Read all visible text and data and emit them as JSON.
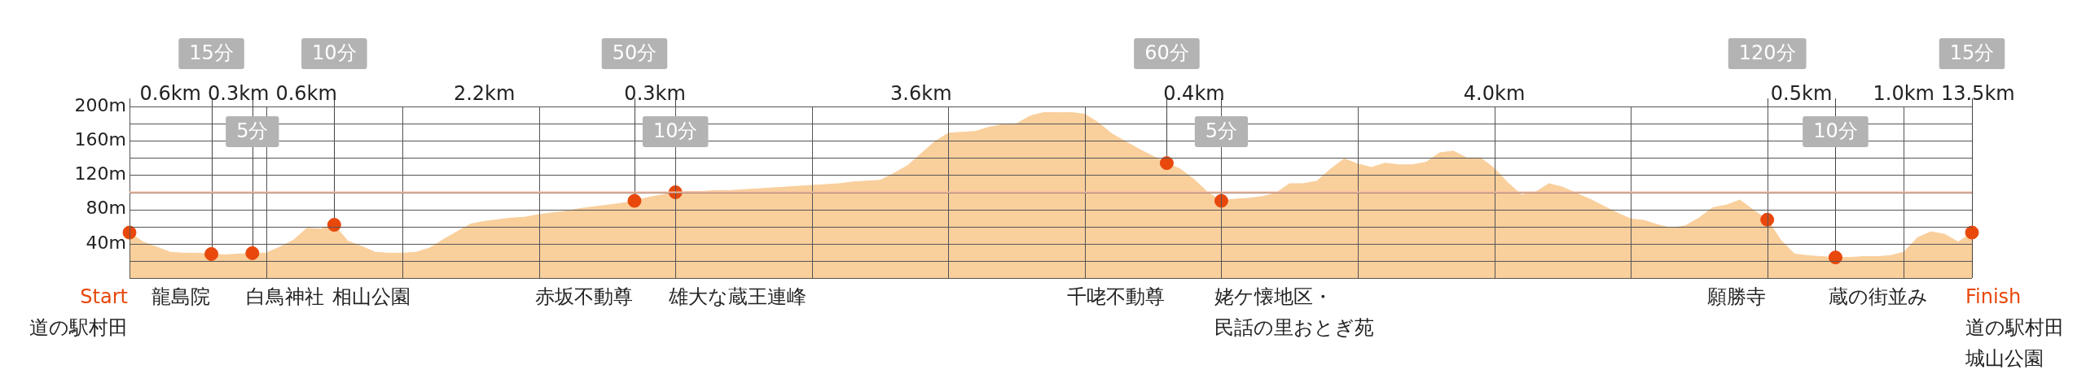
{
  "chart_data": {
    "type": "area",
    "ylim": [
      0,
      200
    ],
    "categories": [
      null,
      null,
      null,
      null,
      null,
      null,
      null,
      null,
      null,
      null,
      null,
      null,
      null,
      null,
      null,
      null,
      null,
      null,
      null,
      null,
      null,
      null,
      null,
      null,
      null,
      null,
      null,
      null,
      null,
      null,
      null,
      null,
      null,
      null,
      null,
      null,
      null,
      null,
      null,
      null,
      null,
      null,
      null,
      null,
      null,
      null,
      null,
      null,
      null,
      null,
      null,
      null,
      null,
      null,
      null,
      null,
      null,
      null,
      null,
      null,
      null,
      null,
      null,
      null,
      null,
      null,
      null,
      null,
      null,
      null,
      null,
      null,
      null,
      null,
      null,
      null,
      null,
      null,
      null,
      null,
      null,
      null,
      null,
      null,
      null,
      null,
      null,
      null,
      null,
      null,
      null,
      null,
      null,
      null,
      null,
      null,
      null,
      null,
      null,
      null,
      null,
      null,
      null,
      null,
      null,
      null,
      null,
      null,
      null,
      null,
      null,
      null,
      null,
      null,
      null,
      null,
      null,
      null,
      null,
      null,
      null,
      null,
      null,
      null,
      null,
      null,
      null,
      null,
      null,
      null,
      null,
      null,
      null,
      null,
      null,
      null
    ],
    "yticks": [
      {
        "value": 0,
        "label": null
      },
      {
        "value": 20,
        "label": null
      },
      {
        "value": 40,
        "label": "40m"
      },
      {
        "value": 60,
        "label": null
      },
      {
        "value": 80,
        "label": "80m"
      },
      {
        "value": 100,
        "label": null
      },
      {
        "value": 120,
        "label": "120m"
      },
      {
        "value": 140,
        "label": null
      },
      {
        "value": 160,
        "label": "160m"
      },
      {
        "value": 180,
        "label": null
      },
      {
        "value": 200,
        "label": "200m"
      }
    ],
    "grid": true,
    "tick_labels": "y",
    "legend": false,
    "series": [
      {
        "color": "#f9cf9c",
        "marker": "none",
        "values": [
          53,
          42,
          36,
          30,
          29,
          29,
          28,
          27,
          28,
          29,
          29,
          36,
          44,
          58,
          57,
          62,
          43,
          37,
          30,
          29,
          29,
          30,
          35,
          45,
          54,
          63,
          66,
          68,
          70,
          71,
          74,
          76,
          78,
          81,
          83,
          85,
          87,
          90,
          94,
          97,
          100,
          101,
          101,
          102,
          102,
          103,
          104,
          105,
          106,
          107,
          108,
          109,
          110,
          112,
          113,
          114,
          122,
          131,
          145,
          159,
          169,
          170,
          171,
          176,
          179,
          180,
          189,
          193,
          193,
          193,
          191,
          181,
          168,
          159,
          150,
          142,
          134,
          127,
          115,
          100,
          90,
          92,
          93,
          95,
          99,
          110,
          110,
          113,
          127,
          139,
          133,
          129,
          134,
          132,
          132,
          135,
          146,
          148,
          140,
          140,
          128,
          111,
          97,
          100,
          110,
          106,
          99,
          92,
          84,
          76,
          69,
          67,
          62,
          58,
          61,
          70,
          82,
          85,
          91,
          79,
          68,
          44,
          28,
          26,
          25,
          24,
          24,
          25,
          25,
          26,
          30,
          47,
          54,
          51,
          42,
          53
        ]
      },
      {
        "type": "scatter",
        "color": "#e8480c",
        "marker": "circle",
        "values": [
          53,
          null,
          null,
          null,
          null,
          null,
          28,
          null,
          null,
          29,
          null,
          null,
          null,
          null,
          null,
          62,
          null,
          null,
          null,
          null,
          null,
          null,
          null,
          null,
          null,
          null,
          null,
          null,
          null,
          null,
          null,
          null,
          null,
          null,
          null,
          null,
          null,
          90,
          null,
          null,
          100,
          null,
          null,
          null,
          null,
          null,
          null,
          null,
          null,
          null,
          null,
          null,
          null,
          null,
          null,
          null,
          null,
          null,
          null,
          null,
          null,
          null,
          null,
          null,
          null,
          null,
          null,
          null,
          null,
          null,
          null,
          null,
          null,
          null,
          null,
          null,
          134,
          null,
          null,
          null,
          90,
          null,
          null,
          null,
          null,
          null,
          null,
          null,
          null,
          null,
          null,
          null,
          null,
          null,
          null,
          null,
          null,
          null,
          null,
          null,
          null,
          null,
          null,
          null,
          null,
          null,
          null,
          null,
          null,
          null,
          null,
          null,
          null,
          null,
          null,
          null,
          null,
          null,
          null,
          null,
          68,
          null,
          null,
          null,
          null,
          24,
          null,
          null,
          null,
          null,
          null,
          null,
          null,
          null,
          null,
          53
        ]
      }
    ],
    "ref_lines": [
      {
        "axis": "y",
        "value": 100,
        "color": "#f6b9a0"
      }
    ],
    "annotations": [
      "Start\n道の駅村田",
      "龍島院",
      "白鳥神社",
      "相山公園",
      "赤坂不動尊",
      "雄大な蔵王連峰",
      "千咾不動尊",
      "姥ケ懐地区・民話の里おとぎ苑",
      "願勝寺",
      "蔵の街並み",
      "Finish\n道の駅村田城山公園",
      "15分",
      "5分",
      "10分",
      "50分",
      "10分",
      "60分",
      "5分",
      "120分",
      "10分",
      "15分",
      "0.6km",
      "0.3km",
      "0.6km",
      "2.2km",
      "0.3km",
      "3.6km",
      "0.4km",
      "4.0km",
      "0.5km",
      "1.0km",
      "13.5km"
    ]
  }
}
